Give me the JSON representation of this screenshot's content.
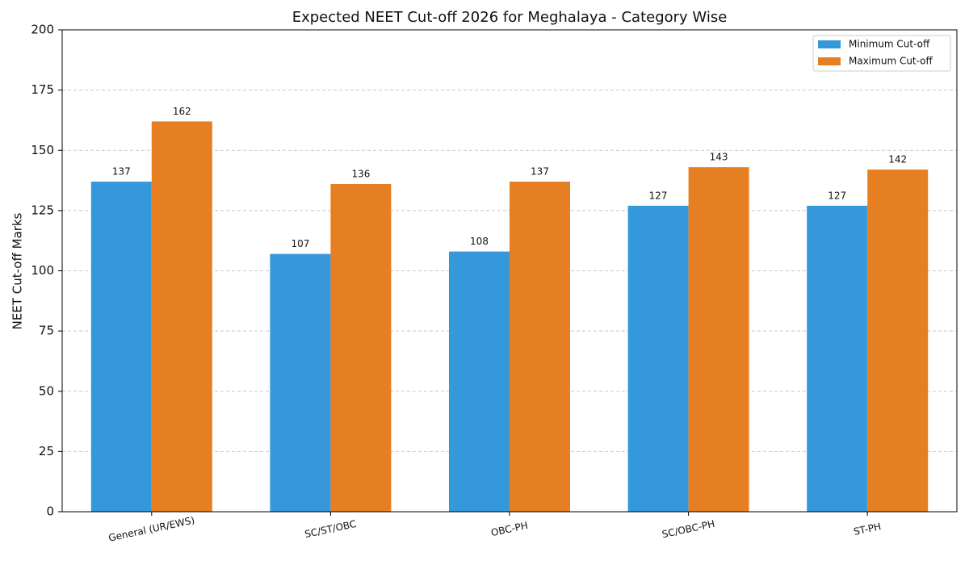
{
  "chart_data": {
    "type": "bar",
    "title": "Expected NEET Cut-off 2026 for Meghalaya - Category Wise",
    "y_label": "NEET Cut-off Marks",
    "categories": [
      "General (UR/EWS)",
      "SC/ST/OBC",
      "OBC-PH",
      "SC/OBC-PH",
      "ST-PH"
    ],
    "series": [
      {
        "name": "Minimum Cut-off",
        "color": "#3498db",
        "values": [
          137,
          107,
          108,
          127,
          127
        ]
      },
      {
        "name": "Maximum Cut-off",
        "color": "#e67e22",
        "values": [
          162,
          136,
          137,
          143,
          142
        ]
      }
    ],
    "ylim": [
      0,
      200
    ],
    "yticks": [
      0,
      25,
      50,
      75,
      100,
      125,
      150,
      175,
      200
    ],
    "grid": true,
    "legend": "upper right"
  }
}
